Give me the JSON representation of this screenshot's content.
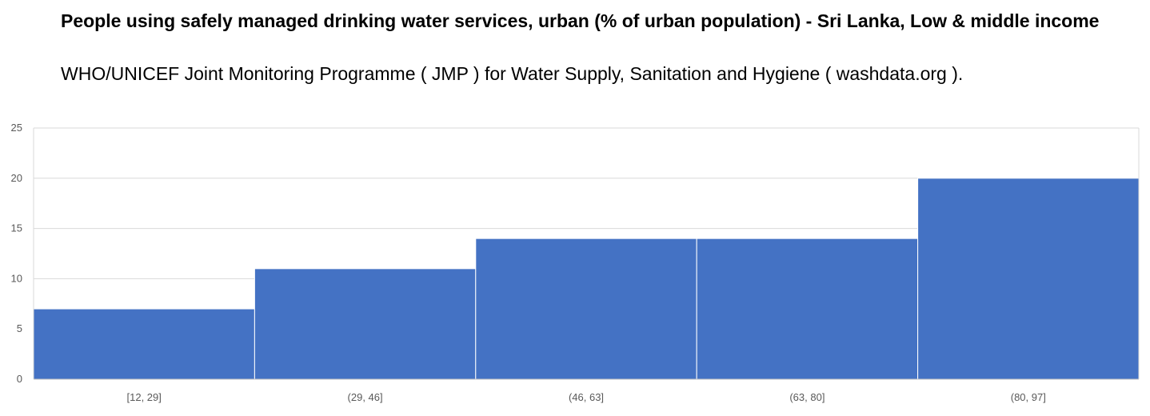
{
  "chart_data": {
    "type": "bar",
    "title": "People using safely managed drinking water services, urban (% of urban population) - Sri Lanka, Low & middle income",
    "subtitle": "WHO/UNICEF Joint Monitoring Programme ( JMP ) for Water Supply, Sanitation and Hygiene ( washdata.org ).",
    "categories": [
      "[12, 29]",
      "(29, 46]",
      "(46, 63]",
      "(63, 80]",
      "(80, 97]"
    ],
    "values": [
      7,
      11,
      14,
      14,
      20
    ],
    "ylim": [
      0,
      25
    ],
    "yticks": [
      0,
      5,
      10,
      15,
      20,
      25
    ],
    "grid": true,
    "legend": "none",
    "bar_color": "#4472C4"
  }
}
